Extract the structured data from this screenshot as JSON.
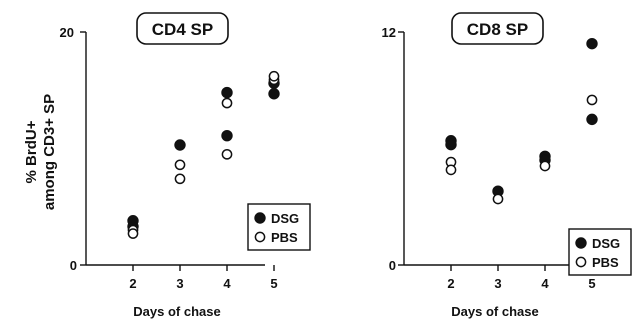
{
  "ylabel_lines": [
    "% BrdU+",
    "among CD3+ SP"
  ],
  "chart_data": [
    {
      "type": "scatter",
      "title": "CD4 SP",
      "xlabel": "Days of chase",
      "ylabel": "% BrdU+ among CD3+ SP",
      "ylim": [
        0,
        20
      ],
      "yticks": [
        "0",
        "20"
      ],
      "xticks": [
        "2",
        "3",
        "4",
        "5"
      ],
      "legend_position": "bottom-right",
      "series": [
        {
          "name": "DSG",
          "marker": "filled-circle",
          "x": [
            2,
            2,
            3,
            4,
            4,
            5,
            5
          ],
          "y": [
            3.8,
            3.3,
            10.3,
            14.8,
            11.1,
            15.6,
            14.7
          ]
        },
        {
          "name": "PBS",
          "marker": "open-circle",
          "x": [
            2,
            2,
            3,
            3,
            4,
            4,
            5,
            5
          ],
          "y": [
            3.0,
            2.7,
            8.6,
            7.4,
            13.9,
            9.5,
            15.9,
            16.2
          ]
        }
      ]
    },
    {
      "type": "scatter",
      "title": "CD8 SP",
      "xlabel": "Days of chase",
      "ylabel": "",
      "ylim": [
        0,
        12
      ],
      "yticks": [
        "0",
        "12"
      ],
      "xticks": [
        "2",
        "3",
        "4",
        "5"
      ],
      "legend_position": "bottom-right",
      "series": [
        {
          "name": "DSG",
          "marker": "filled-circle",
          "x": [
            2,
            2,
            3,
            4,
            4,
            5,
            5
          ],
          "y": [
            6.4,
            6.2,
            3.8,
            5.6,
            5.4,
            11.4,
            7.5
          ]
        },
        {
          "name": "PBS",
          "marker": "open-circle",
          "x": [
            2,
            2,
            3,
            4,
            5
          ],
          "y": [
            5.3,
            4.9,
            3.4,
            5.1,
            8.5
          ]
        }
      ]
    }
  ]
}
